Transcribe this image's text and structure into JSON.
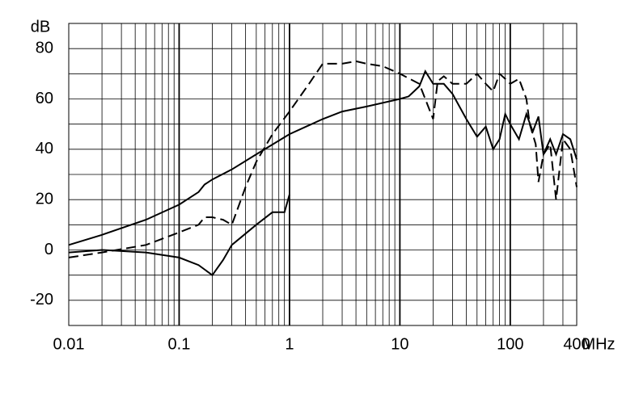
{
  "chart_data": {
    "type": "line",
    "y_unit": "dB",
    "x_unit": "MHz",
    "log_x": true,
    "xlim": [
      0.01,
      400
    ],
    "ylim": [
      -30,
      90
    ],
    "xticks": [
      0.01,
      0.1,
      1,
      10,
      100,
      400
    ],
    "yticks": [
      -20,
      0,
      20,
      40,
      60,
      80
    ],
    "x_grid": [
      0.02,
      0.03,
      0.04,
      0.05,
      0.06,
      0.07,
      0.08,
      0.09,
      0.1,
      0.2,
      0.3,
      0.4,
      0.5,
      0.6,
      0.7,
      0.8,
      0.9,
      1,
      2,
      3,
      4,
      5,
      6,
      7,
      8,
      9,
      10,
      20,
      30,
      40,
      50,
      60,
      70,
      80,
      90,
      100,
      200,
      300
    ],
    "x_major": [
      0.1,
      1,
      10,
      100
    ],
    "y_grid": [
      -20,
      -10,
      0,
      10,
      20,
      30,
      40,
      50,
      60,
      70,
      80
    ],
    "series": [
      {
        "color": "#000000",
        "dashed": false,
        "x": [
          0.01,
          0.02,
          0.05,
          0.1,
          0.15,
          0.17,
          0.2,
          0.3,
          0.5,
          1,
          2,
          3,
          5,
          10,
          12,
          15,
          17,
          20,
          25,
          30,
          40,
          50,
          60,
          70,
          80,
          90,
          100,
          120,
          140,
          160,
          180,
          200,
          230,
          260,
          300,
          350,
          400
        ],
        "values": [
          2,
          6,
          12,
          18,
          23,
          26,
          28,
          32,
          38,
          46,
          52,
          55,
          57,
          60,
          61,
          65,
          71,
          66,
          66,
          62,
          52,
          45,
          49,
          40,
          44,
          54,
          50,
          44,
          54,
          47,
          53,
          38,
          44,
          38,
          46,
          44,
          36
        ]
      },
      {
        "color": "#000000",
        "dashed": true,
        "x": [
          0.01,
          0.02,
          0.05,
          0.1,
          0.15,
          0.17,
          0.2,
          0.25,
          0.3,
          0.4,
          0.5,
          0.7,
          1,
          1.5,
          2,
          3,
          4,
          5,
          7,
          10,
          15,
          20,
          22,
          25,
          30,
          40,
          50,
          60,
          70,
          80,
          90,
          100,
          120,
          140,
          150,
          170,
          180,
          200,
          230,
          260,
          300,
          350,
          400
        ],
        "values": [
          -3,
          -1,
          2,
          7,
          10,
          13,
          13,
          12,
          10,
          25,
          35,
          46,
          55,
          66,
          74,
          74,
          75,
          74,
          73,
          70,
          66,
          52,
          67,
          69,
          66,
          66,
          70,
          66,
          63,
          70,
          68,
          66,
          68,
          60,
          50,
          42,
          27,
          38,
          42,
          20,
          44,
          40,
          25
        ]
      },
      {
        "color": "#000000",
        "dashed": false,
        "x": [
          0.01,
          0.02,
          0.05,
          0.1,
          0.15,
          0.2,
          0.25,
          0.3,
          0.5,
          0.7,
          0.9,
          1
        ],
        "values": [
          -1,
          0,
          -1,
          -3,
          -6,
          -10,
          -4,
          2,
          10,
          15,
          15,
          22
        ]
      }
    ]
  }
}
